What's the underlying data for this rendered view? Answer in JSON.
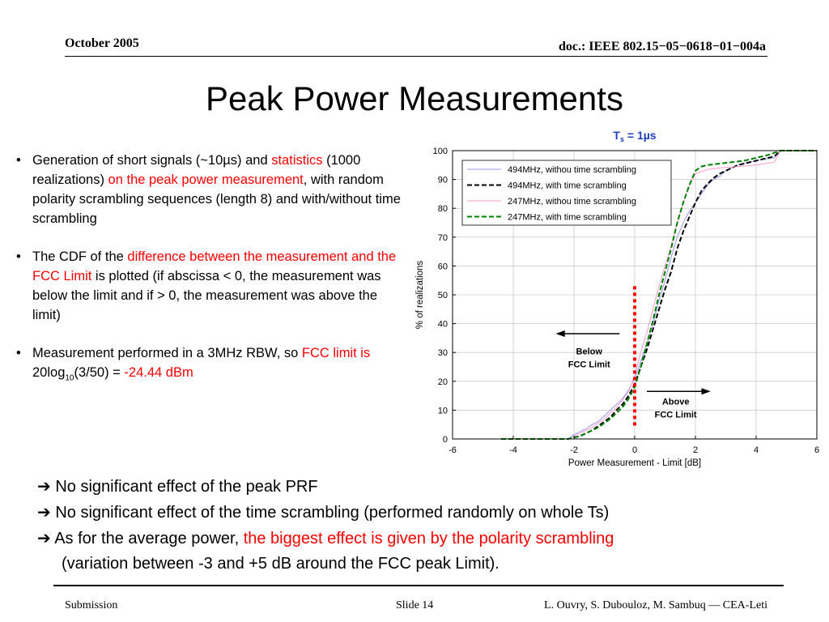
{
  "header": {
    "date": "October 2005",
    "doc": "doc.: IEEE 802.15−05−0618−01−004a"
  },
  "title": "Peak Power Measurements",
  "bullets": {
    "b1": {
      "t1": "Generation of short signals (~10µs) and ",
      "t2": "statistics",
      "t3": " (1000 realizations) ",
      "t4": "on the peak power measurement",
      "t5": ", with random polarity scrambling sequences (length 8) and with/without time scrambling"
    },
    "b2": {
      "t1": "The CDF of the ",
      "t2": "difference between the measurement and the FCC Limit",
      "t3": " is plotted (if abscissa < 0, the measurement was below the limit and if  > 0, the measurement was above the limit)"
    },
    "b3": {
      "t1": "Measurement performed in a 3MHz RBW, so ",
      "t2": "FCC limit is ",
      "t3": "20log",
      "t3sub": "10",
      "t4": "(3/50) = ",
      "t5": "-24.44 dBm"
    }
  },
  "conclusions": {
    "c1": "No significant effect of the peak PRF",
    "c2": "No significant effect of the time scrambling (performed randomly on whole Ts)",
    "c3a": "As for the average power, ",
    "c3b": "the biggest effect is given by the polarity scrambling",
    "c4": "(variation between -3 and +5 dB around the FCC peak Limit)."
  },
  "footer": {
    "left": "Submission",
    "center": "Slide 14",
    "right": "L. Ouvry, S. Dubouloz, M. Sambuq  —  CEA-Leti"
  },
  "colors": {
    "accent": "#ff0000",
    "title_ts": "#1f3fbf",
    "green": "#008000",
    "pink": "#ff99cc",
    "lightblue": "#9999ee"
  },
  "chart_data": {
    "type": "line",
    "title": "T",
    "title_sub": "s",
    "title_rest": " = 1µs",
    "xlabel": "Power Measurement - Limit [dB]",
    "ylabel": "% of realizations",
    "xlim": [
      -6,
      6
    ],
    "ylim": [
      0,
      100
    ],
    "xticks": [
      -6,
      -4,
      -2,
      0,
      2,
      4,
      6
    ],
    "yticks": [
      0,
      10,
      20,
      30,
      40,
      50,
      60,
      70,
      80,
      90,
      100
    ],
    "grid": true,
    "legend_position": "top-left",
    "series": [
      {
        "name": "494MHz, withou time scrambling",
        "color": "#9999ee",
        "dash": "solid",
        "width": 1,
        "x": [
          -4.2,
          -2.2,
          -2.0,
          -1.8,
          -1.6,
          -1.4,
          -1.2,
          -1.0,
          -0.8,
          -0.6,
          -0.4,
          -0.2,
          0.0,
          0.2,
          0.4,
          0.6,
          0.8,
          1.0,
          1.2,
          1.4,
          1.6,
          1.8,
          2.0,
          2.2,
          2.4,
          2.6,
          2.8,
          3.0,
          3.4,
          3.8,
          4.2,
          4.6,
          4.8,
          6.0
        ],
        "y": [
          0,
          0,
          1.5,
          2.5,
          3.5,
          5,
          6,
          8,
          10,
          12,
          14,
          17,
          21,
          27,
          33,
          40,
          48,
          55,
          63,
          70,
          75,
          79,
          82,
          85,
          88,
          90,
          91,
          93,
          95,
          96,
          97,
          97.5,
          100,
          100
        ]
      },
      {
        "name": "494MHz, with time scrambling",
        "color": "#000000",
        "dash": "dashed",
        "width": 2,
        "x": [
          -4.4,
          -2.2,
          -2.0,
          -1.8,
          -1.6,
          -1.4,
          -1.2,
          -1.0,
          -0.8,
          -0.6,
          -0.4,
          -0.2,
          0.0,
          0.2,
          0.4,
          0.6,
          0.8,
          1.0,
          1.2,
          1.4,
          1.6,
          1.8,
          2.0,
          2.2,
          2.4,
          2.6,
          2.8,
          3.0,
          3.4,
          3.8,
          4.2,
          4.6,
          4.8,
          6.0
        ],
        "y": [
          0,
          0,
          0.5,
          1,
          2,
          3,
          4.5,
          6,
          7.5,
          10,
          12,
          15,
          19,
          25,
          31,
          38,
          45,
          52,
          58,
          66,
          72,
          77,
          82,
          86,
          88.5,
          90.5,
          92,
          93,
          95,
          96,
          97,
          98,
          100,
          100
        ]
      },
      {
        "name": "247MHz, withou time scrambling",
        "color": "#ff99cc",
        "dash": "solid",
        "width": 1,
        "x": [
          -4.2,
          -2.2,
          -2.0,
          -1.8,
          -1.6,
          -1.4,
          -1.2,
          -1.0,
          -0.8,
          -0.6,
          -0.4,
          -0.2,
          0.0,
          0.2,
          0.4,
          0.6,
          0.8,
          1.0,
          1.2,
          1.4,
          1.6,
          1.8,
          2.0,
          2.4,
          2.8,
          3.4,
          4.0,
          4.6,
          4.8,
          6.0
        ],
        "y": [
          0,
          0,
          1,
          2,
          3,
          4,
          5.5,
          7,
          9,
          11,
          13.5,
          16.5,
          22,
          30,
          37,
          45,
          53,
          60,
          67,
          75,
          82,
          88,
          92,
          93.5,
          94,
          94.5,
          95,
          96,
          100,
          100
        ]
      },
      {
        "name": "247MHz, with time scrambling",
        "color": "#008000",
        "dash": "dashed",
        "width": 2,
        "x": [
          -4.4,
          -2.2,
          -2.0,
          -1.8,
          -1.6,
          -1.4,
          -1.2,
          -1.0,
          -0.8,
          -0.6,
          -0.4,
          -0.2,
          0.0,
          0.2,
          0.4,
          0.6,
          0.8,
          1.0,
          1.2,
          1.4,
          1.6,
          1.8,
          2.0,
          2.2,
          2.4,
          2.8,
          3.2,
          3.6,
          4.0,
          4.4,
          4.8,
          6.0
        ],
        "y": [
          0,
          0,
          0.5,
          1,
          2,
          3,
          4,
          5.5,
          7,
          9,
          11,
          14,
          18,
          25,
          33,
          41,
          50,
          58,
          66,
          75,
          82,
          88,
          93,
          94.5,
          95,
          95.5,
          96,
          96.5,
          97.5,
          98.5,
          100,
          100
        ]
      }
    ],
    "annotations": {
      "fcc_line_x": 0,
      "below": {
        "line1": "Below",
        "line2": "FCC Limit"
      },
      "above": {
        "line1": "Above",
        "line2": "FCC Limit"
      }
    }
  }
}
